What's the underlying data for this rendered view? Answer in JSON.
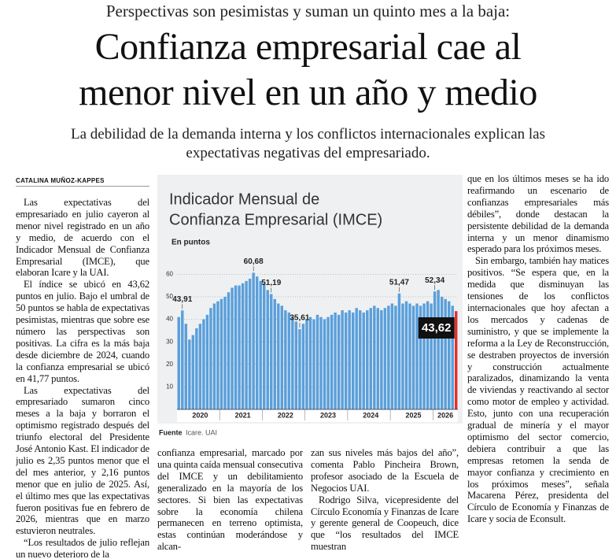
{
  "header": {
    "kicker": "Perspectivas son pesimistas y suman un quinto mes a la baja:",
    "title_lines": [
      "Confianza empresarial cae al",
      "menor nivel en un año y medio"
    ],
    "deck_lines": [
      "La debilidad de la demanda interna y los conflictos internacionales explican las",
      "expectativas negativas del empresariado."
    ]
  },
  "byline": "CATALINA MUÑOZ-KAPPES",
  "columns": [
    [
      "Las expectativas del empresariado en julio cayeron al menor nivel registrado en un año y medio, de acuerdo con el Indicador Mensual de Confianza Empresarial (IMCE), que elaboran Icare y la UAI.",
      "El índice se ubicó en 43,62 puntos en julio. Bajo el umbral de 50 puntos se habla de expectativas pesimistas, mientras que sobre ese número las perspectivas son positivas. La cifra es la más baja desde diciembre de 2024, cuando la confianza empresarial se ubicó en 41,77 puntos.",
      "Las expectativas del empresariado sumaron cinco meses a la baja y borraron el optimismo registrado después del triunfo electoral del Presidente José Antonio Kast. El indicador de julio es 2,35 puntos menor que el del mes anterior, y 2,16 puntos menor que en julio de 2025. Así, el último mes que las expectativas fueron positivas fue en febrero de 2026, mientras que en marzo estuvieron neutrales.",
      "“Los resultados de julio reflejan un nuevo deterioro de la"
    ],
    [
      "confianza empresarial, marcado por una quinta caída mensual consecutiva del IMCE y un debilitamiento generalizado en la mayoría de los sectores. Si bien las expectativas sobre la economía chilena permanecen en terreno optimista, estas continúan moderándose y alcan-"
    ],
    [
      "zan sus niveles más bajos del año”, comenta Pablo Pincheira Brown, profesor asociado de la Escuela de Negocios UAI.",
      "Rodrigo Silva, vicepresidente del Círculo Economía y Finanzas de Icare y gerente general de Coopeuch, dice que “los resultados del IMCE muestran"
    ],
    [
      "que en los últimos meses se ha ido reafirmando un escenario de confianzas empresariales más débiles”, donde destacan la persistente debilidad de la demanda interna y un menor dinamismo esperado para los próximos meses.",
      "Sin embargo, también hay matices positivos. “Se espera que, en la medida que disminuyan las tensiones de los conflictos internacionales que hoy afectan a los mercados y cadenas de suministro, y que se implemente la reforma a la Ley de Reconstrucción, se destraben proyectos de inversión y construcción actualmente paralizados, dinamizando la venta de viviendas y reactivando al sector como motor de empleo y actividad. Esto, junto con una recuperación gradual de minería y el mayor optimismo del sector comercio, debiera contribuir a que las empresas retomen la senda de mayor confianza y crecimiento en los próximos meses”, señala Macarena Pérez, presidenta del Círculo de Economía y Finanzas de Icare y socia de Econsult."
    ]
  ],
  "chart_data": {
    "type": "bar",
    "title_lines": [
      "Indicador Mensual de",
      "Confianza Empresarial (IMCE)"
    ],
    "subtitle": "En puntos",
    "source_label": "Fuente",
    "source": "Icare. UAI",
    "categories": [
      null,
      null,
      null,
      null,
      null,
      null,
      "2020",
      null,
      null,
      null,
      null,
      null,
      null,
      null,
      null,
      null,
      null,
      null,
      "2021",
      null,
      null,
      null,
      null,
      null,
      null,
      null,
      null,
      null,
      null,
      null,
      "2022",
      null,
      null,
      null,
      null,
      null,
      null,
      null,
      null,
      null,
      null,
      null,
      "2023",
      null,
      null,
      null,
      null,
      null,
      null,
      null,
      null,
      null,
      null,
      null,
      "2024",
      null,
      null,
      null,
      null,
      null,
      null,
      null,
      null,
      null,
      null,
      null,
      "2025",
      null,
      null,
      null,
      null,
      null,
      null,
      null,
      null,
      "2026",
      null,
      null,
      null
    ],
    "values": [
      41,
      43.91,
      38,
      31,
      33,
      36,
      38,
      40,
      42,
      45,
      47,
      48,
      49,
      50,
      52,
      54,
      55,
      55,
      56,
      57,
      58,
      60.68,
      59,
      57,
      56,
      53,
      51.19,
      49,
      47,
      46,
      44,
      43,
      41,
      39,
      35.61,
      38,
      40,
      41,
      40,
      42,
      41,
      40,
      41,
      42,
      43,
      42,
      44,
      43,
      44,
      43,
      45,
      44,
      43,
      44,
      45,
      46,
      45,
      44,
      45,
      46,
      47,
      46,
      51.47,
      47,
      48,
      47,
      46,
      47,
      46,
      47,
      48,
      47,
      52.34,
      53,
      50,
      49,
      48,
      46,
      43.62
    ],
    "value_labels": [
      null,
      "43,91",
      null,
      null,
      null,
      null,
      null,
      null,
      null,
      null,
      null,
      null,
      null,
      null,
      null,
      null,
      null,
      null,
      null,
      null,
      null,
      "60,68",
      null,
      null,
      null,
      null,
      "51,19",
      null,
      null,
      null,
      null,
      null,
      null,
      null,
      "35,61",
      null,
      null,
      null,
      null,
      null,
      null,
      null,
      null,
      null,
      null,
      null,
      null,
      null,
      null,
      null,
      null,
      null,
      null,
      null,
      null,
      null,
      null,
      null,
      null,
      null,
      null,
      null,
      "51,47",
      null,
      null,
      null,
      null,
      null,
      null,
      null,
      null,
      null,
      "52,34",
      null,
      null,
      null,
      null,
      null,
      "43,62"
    ],
    "color": "#5a9fdb",
    "highlight": {
      "index": 78,
      "color": "#e3302b"
    },
    "ylim": [
      0,
      65
    ],
    "yticks": [
      10,
      20,
      30,
      40,
      50,
      60
    ],
    "grid": true
  }
}
